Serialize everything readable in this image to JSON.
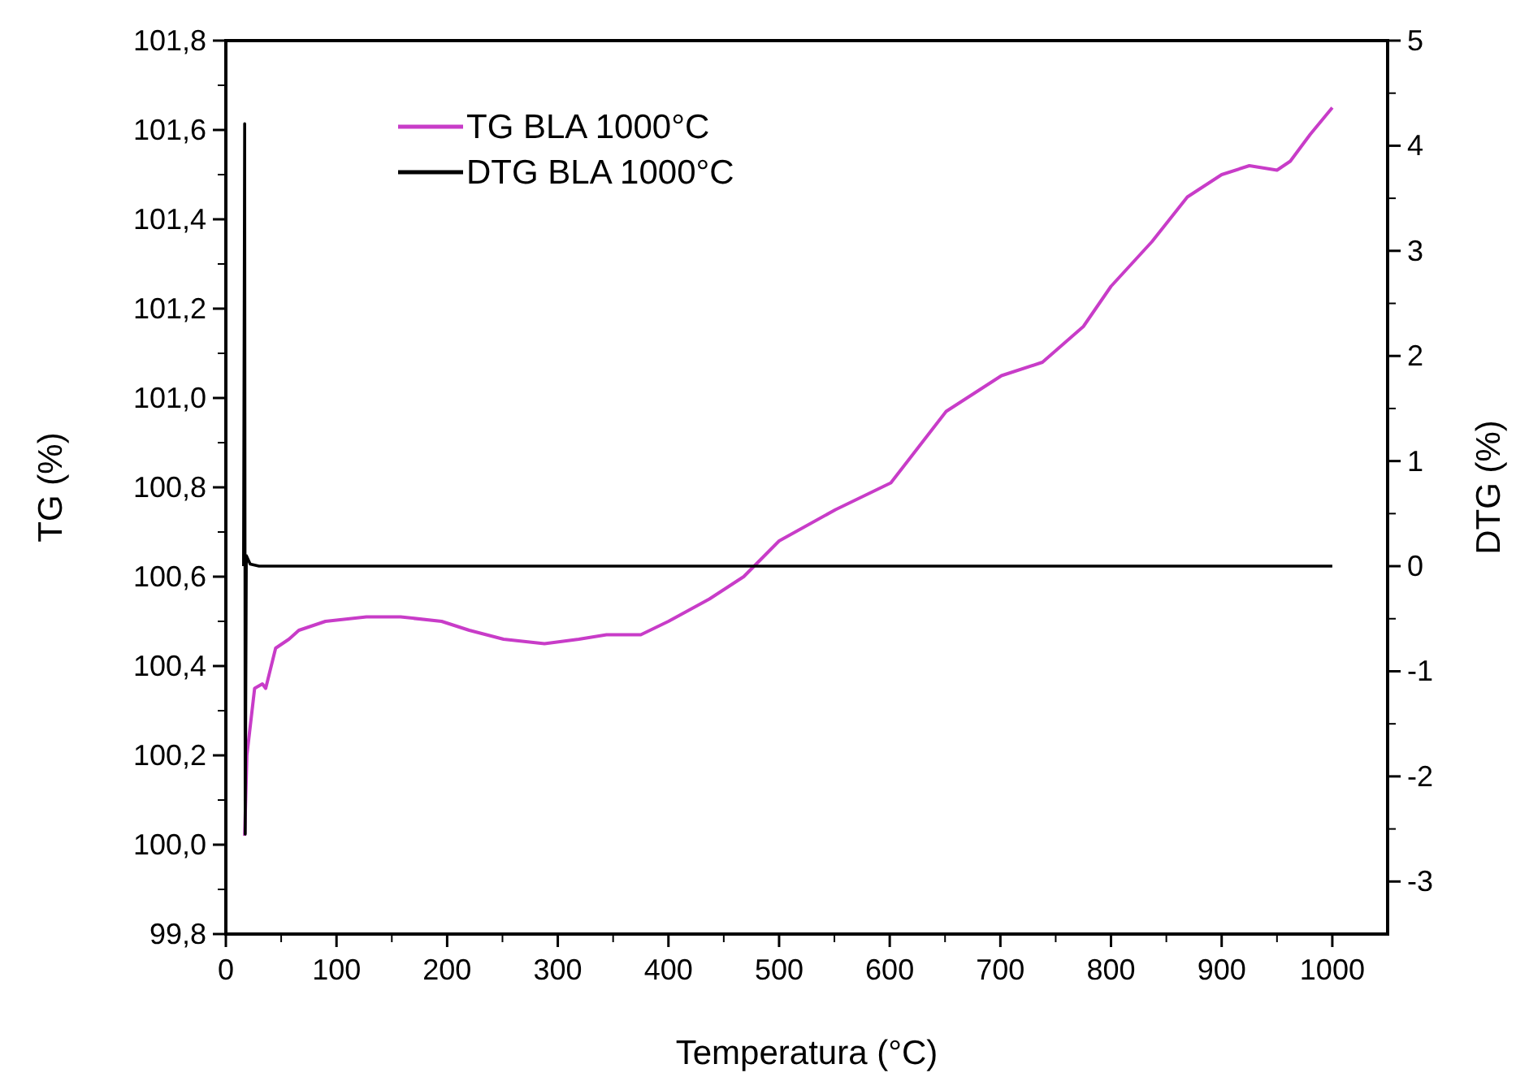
{
  "chart_data": {
    "type": "line",
    "xlabel": "Temperatura (°C)",
    "ylabel": "TG (%)",
    "y2label": "DTG (%)",
    "xlim": [
      0,
      1050
    ],
    "xticks": [
      0,
      100,
      200,
      300,
      400,
      500,
      600,
      700,
      800,
      900,
      1000
    ],
    "ylim": [
      99.8,
      101.8
    ],
    "yticks": [
      {
        "value": 99.8,
        "label": "99,8"
      },
      {
        "value": 100.0,
        "label": "100,0"
      },
      {
        "value": 100.2,
        "label": "100,2"
      },
      {
        "value": 100.4,
        "label": "100,4"
      },
      {
        "value": 100.6,
        "label": "100,6"
      },
      {
        "value": 100.8,
        "label": "100,8"
      },
      {
        "value": 101.0,
        "label": "101,0"
      },
      {
        "value": 101.2,
        "label": "101,2"
      },
      {
        "value": 101.4,
        "label": "101,4"
      },
      {
        "value": 101.6,
        "label": "101,6"
      },
      {
        "value": 101.8,
        "label": "101,8"
      }
    ],
    "y2lim": [
      -3.5,
      5
    ],
    "y2ticks": [
      -3,
      -2,
      -1,
      0,
      1,
      2,
      3,
      4,
      5
    ],
    "legend": "top left",
    "grid": false,
    "marker": "none",
    "line_style": "solid",
    "series": [
      {
        "name": "TG BLA 1000°C",
        "color": "#c83cc8",
        "x": [
          17,
          19,
          26,
          33,
          36,
          45,
          57,
          66,
          90,
          127,
          158,
          195,
          220,
          251,
          288,
          319,
          344,
          375,
          400,
          437,
          468,
          500,
          551,
          601,
          651,
          701,
          738,
          775,
          800,
          837,
          869,
          900,
          925,
          950,
          962,
          980,
          1000
        ],
        "values": [
          100.02,
          100.2,
          100.35,
          100.36,
          100.35,
          100.44,
          100.46,
          100.48,
          100.5,
          100.51,
          100.51,
          100.5,
          100.48,
          100.46,
          100.45,
          100.46,
          100.47,
          100.47,
          100.5,
          100.55,
          100.6,
          100.68,
          100.75,
          100.81,
          100.97,
          101.05,
          101.08,
          101.16,
          101.25,
          101.35,
          101.45,
          101.5,
          101.52,
          101.51,
          101.53,
          101.59,
          101.65
        ]
      },
      {
        "name": "DTG BLA 1000°C",
        "color": "#000000",
        "axis": "y2",
        "x": [
          16,
          17,
          17.5,
          18.5,
          22,
          30,
          100,
          200,
          300,
          400,
          500,
          600,
          700,
          800,
          900,
          1000
        ],
        "values": [
          0,
          4.21,
          -2.55,
          0.1,
          0.02,
          0,
          0,
          0,
          0,
          0,
          0,
          0,
          0,
          0,
          0,
          0
        ]
      }
    ]
  }
}
